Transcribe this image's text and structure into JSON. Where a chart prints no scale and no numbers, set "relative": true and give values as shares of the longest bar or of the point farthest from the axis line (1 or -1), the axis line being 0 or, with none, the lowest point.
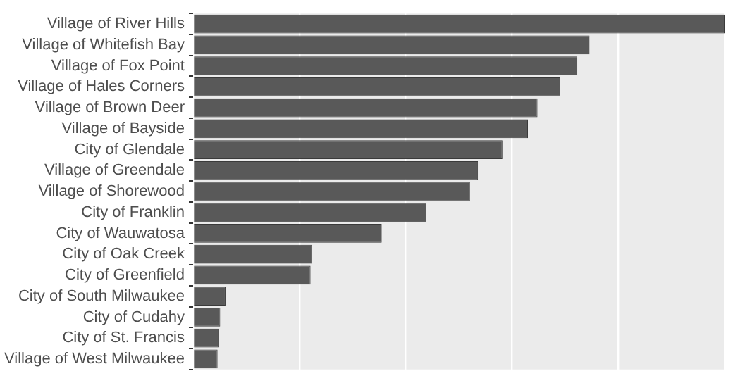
{
  "chart_data": {
    "type": "bar",
    "orientation": "horizontal",
    "relative": true,
    "grid": "x",
    "color": "#595959",
    "categories": [
      "Village of River Hills",
      "Village of Whitefish Bay",
      "Village of Fox Point",
      "Village of Hales Corners",
      "Village of Brown Deer",
      "Village of Bayside",
      "City of Glendale",
      "Village of Greendale",
      "Village of Shorewood",
      "City of Franklin",
      "City of Wauwatosa",
      "City of Oak Creek",
      "City of Greenfield",
      "City of South Milwaukee",
      "City of Cudahy",
      "City of St. Francis",
      "Village of West Milwaukee"
    ],
    "values": [
      1,
      0.746,
      0.723,
      0.691,
      0.648,
      0.63,
      0.582,
      0.536,
      0.521,
      0.439,
      0.355,
      0.224,
      0.221,
      0.061,
      0.051,
      0.049,
      0.046
    ]
  }
}
